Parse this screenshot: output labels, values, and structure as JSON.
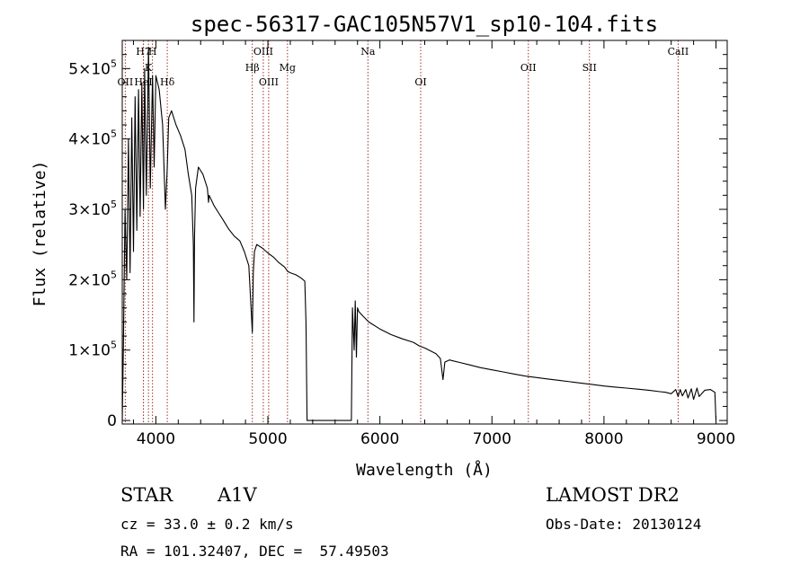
{
  "chart_data": {
    "type": "line",
    "title": "spec-56317-GAC105N57V1_sp10-104.fits",
    "xlabel": "Wavelength (Å)",
    "ylabel": "Flux (relative)",
    "xlim": [
      3700,
      9100
    ],
    "ylim": [
      -5000,
      540000
    ],
    "xticks": [
      4000,
      5000,
      6000,
      7000,
      8000,
      9000
    ],
    "yticks": [
      {
        "value": 0,
        "base": "0",
        "exp": ""
      },
      {
        "value": 100000,
        "base": "1×10",
        "exp": "5"
      },
      {
        "value": 200000,
        "base": "2×10",
        "exp": "5"
      },
      {
        "value": 300000,
        "base": "3×10",
        "exp": "5"
      },
      {
        "value": 400000,
        "base": "4×10",
        "exp": "5"
      },
      {
        "value": 500000,
        "base": "5×10",
        "exp": "5"
      }
    ],
    "lines": [
      {
        "label": "H7",
        "wavelength": 3889,
        "row": 1
      },
      {
        "label": "H",
        "wavelength": 3970,
        "row": 1
      },
      {
        "label": "K",
        "wavelength": 3934,
        "row": 2
      },
      {
        "label": "OII",
        "wavelength": 3727,
        "row": 3
      },
      {
        "label": "HeI",
        "wavelength": 3889,
        "row": 3
      },
      {
        "label": "Hδ",
        "wavelength": 4102,
        "row": 3
      },
      {
        "label": "OIII",
        "wavelength": 4959,
        "row": 1
      },
      {
        "label": "Hβ",
        "wavelength": 4861,
        "row": 2
      },
      {
        "label": "Mg",
        "wavelength": 5175,
        "row": 2
      },
      {
        "label": "OIII",
        "wavelength": 5007,
        "row": 3
      },
      {
        "label": "Na",
        "wavelength": 5893,
        "row": 1
      },
      {
        "label": "OI",
        "wavelength": 6364,
        "row": 3
      },
      {
        "label": "OII",
        "wavelength": 7325,
        "row": 2
      },
      {
        "label": "SII",
        "wavelength": 7870,
        "row": 2
      },
      {
        "label": "CaII",
        "wavelength": 8662,
        "row": 1
      }
    ],
    "series": [
      {
        "name": "flux",
        "x": [
          3700,
          3710,
          3725,
          3740,
          3755,
          3770,
          3785,
          3800,
          3815,
          3830,
          3845,
          3860,
          3875,
          3889,
          3900,
          3915,
          3934,
          3950,
          3970,
          3985,
          4000,
          4030,
          4060,
          4085,
          4102,
          4115,
          4140,
          4180,
          4220,
          4260,
          4290,
          4320,
          4335,
          4340,
          4345,
          4355,
          4380,
          4420,
          4460,
          4470,
          4475,
          4490,
          4520,
          4560,
          4600,
          4650,
          4700,
          4750,
          4790,
          4830,
          4850,
          4861,
          4870,
          4880,
          4900,
          4950,
          5000,
          5050,
          5100,
          5150,
          5175,
          5200,
          5250,
          5300,
          5330,
          5340,
          5350,
          5745,
          5755,
          5770,
          5780,
          5790,
          5800,
          5810,
          5850,
          5900,
          6000,
          6100,
          6200,
          6300,
          6350,
          6400,
          6450,
          6500,
          6540,
          6563,
          6580,
          6620,
          6700,
          6800,
          6900,
          7000,
          7100,
          7200,
          7300,
          7400,
          7500,
          7600,
          7700,
          7800,
          7900,
          8000,
          8100,
          8200,
          8300,
          8400,
          8500,
          8550,
          8600,
          8640,
          8662,
          8680,
          8700,
          8730,
          8750,
          8780,
          8800,
          8830,
          8850,
          8900,
          8950,
          8990,
          9000
        ],
        "y": [
          0,
          100000,
          300000,
          200000,
          400000,
          210000,
          430000,
          240000,
          460000,
          270000,
          470000,
          290000,
          480000,
          300000,
          500000,
          320000,
          530000,
          330000,
          490000,
          360000,
          490000,
          470000,
          420000,
          300000,
          360000,
          430000,
          440000,
          420000,
          405000,
          385000,
          350000,
          320000,
          250000,
          140000,
          260000,
          330000,
          360000,
          350000,
          330000,
          310000,
          320000,
          315000,
          305000,
          295000,
          285000,
          272000,
          262000,
          255000,
          240000,
          220000,
          160000,
          125000,
          210000,
          240000,
          250000,
          245000,
          238000,
          232000,
          224000,
          218000,
          212000,
          210000,
          207000,
          202000,
          198000,
          140000,
          0,
          0,
          160000,
          100000,
          170000,
          90000,
          160000,
          155000,
          148000,
          140000,
          130000,
          122000,
          116000,
          111000,
          106000,
          103000,
          99000,
          95000,
          88000,
          58000,
          83000,
          86000,
          83000,
          79000,
          75000,
          72000,
          69000,
          66000,
          63000,
          61000,
          59000,
          57000,
          55000,
          53000,
          51000,
          49000,
          47500,
          46000,
          44500,
          43000,
          41000,
          40000,
          38000,
          44000,
          34000,
          44000,
          35000,
          44000,
          32000,
          45000,
          30000,
          46000,
          34000,
          43000,
          44000,
          40000,
          0
        ]
      }
    ]
  },
  "info": {
    "object_class": "STAR",
    "subclass": "A1V",
    "survey": "LAMOST DR2",
    "cz": "cz = 33.0 ± 0.2 km/s",
    "obs_date": "Obs-Date: 20130124",
    "coords": "RA = 101.32407, DEC =  57.49503"
  }
}
